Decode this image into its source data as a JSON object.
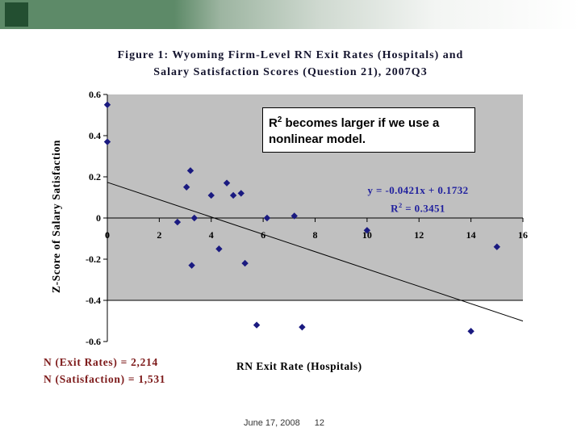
{
  "slide": {
    "footer_date": "June 17, 2008",
    "footer_page": "12"
  },
  "colors": {
    "banner_green": "#5d8a68",
    "banner_dark_green": "#234f31",
    "plot_area_gray": "#c0c0c0",
    "marker_navy": "#1a1a80",
    "equation_blue": "#1f1f9e",
    "notes_maroon": "#7d1a1a"
  },
  "callout": {
    "r": "R",
    "sup": "2",
    "rest": " becomes larger if we use a nonlinear model."
  },
  "annotations": {
    "n_line1": "N (Exit Rates) = 2,214",
    "n_line2": "N (Satisfaction) = 1,531"
  },
  "chart_data": {
    "type": "scatter",
    "title_line1": "Figure 1: Wyoming Firm-Level RN Exit Rates (Hospitals) and",
    "title_line2": "Salary Satisfaction Scores (Question 21), 2007Q3",
    "xlabel": "RN Exit Rate (Hospitals)",
    "ylabel": "Z-Score of Salary Satisfaction",
    "xlim": [
      0,
      16
    ],
    "ylim": [
      -0.6,
      0.6
    ],
    "x_ticks": [
      0,
      2,
      4,
      6,
      8,
      10,
      12,
      14,
      16
    ],
    "y_ticks": [
      0.6,
      0.4,
      0.2,
      0,
      -0.2,
      -0.4,
      -0.6
    ],
    "grid": false,
    "legend": false,
    "plot_bg": "#c0c0c0",
    "marker_color": "#1a1a80",
    "points": [
      [
        0,
        0.55
      ],
      [
        0,
        0.37
      ],
      [
        3.2,
        0.23
      ],
      [
        3.05,
        0.15
      ],
      [
        4.6,
        0.17
      ],
      [
        4.0,
        0.11
      ],
      [
        4.85,
        0.11
      ],
      [
        5.15,
        0.12
      ],
      [
        2.7,
        -0.02
      ],
      [
        3.35,
        0.0
      ],
      [
        6.15,
        0.0
      ],
      [
        7.2,
        0.01
      ],
      [
        10.0,
        -0.06
      ],
      [
        4.3,
        -0.15
      ],
      [
        3.25,
        -0.23
      ],
      [
        5.3,
        -0.22
      ],
      [
        15.0,
        -0.14
      ],
      [
        5.75,
        -0.52
      ],
      [
        7.5,
        -0.53
      ],
      [
        14.0,
        -0.55
      ]
    ],
    "trendline": {
      "slope": -0.0421,
      "intercept": 0.1732,
      "equation": "y = -0.0421x + 0.1732",
      "r2_prefix": "R",
      "r2_sup": "2",
      "r2_rest": " = 0.3451"
    }
  }
}
